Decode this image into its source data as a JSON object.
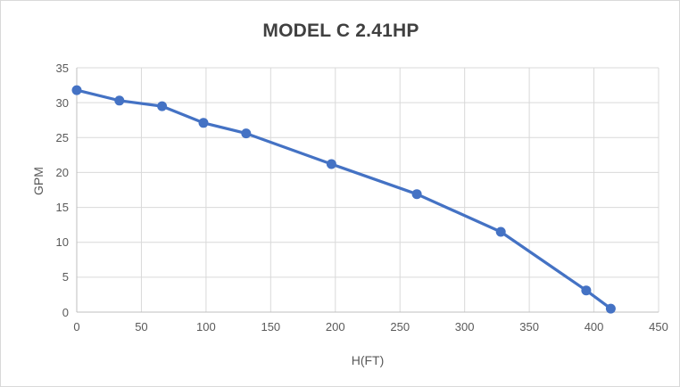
{
  "chart": {
    "title": "MODEL C 2.41HP",
    "xlabel": "H(FT)",
    "ylabel": "GPM"
  },
  "chart_data": {
    "type": "line",
    "title": "MODEL C 2.41HP",
    "xlabel": "H(FT)",
    "ylabel": "GPM",
    "x": [
      0,
      33,
      66,
      98,
      131,
      197,
      263,
      328,
      394,
      413
    ],
    "y": [
      31.8,
      30.3,
      29.5,
      27.1,
      25.6,
      21.2,
      16.9,
      11.5,
      3.1,
      0.5
    ],
    "xlim": [
      0,
      450
    ],
    "ylim": [
      0,
      35
    ],
    "x_ticks": [
      0,
      50,
      100,
      150,
      200,
      250,
      300,
      350,
      400,
      450
    ],
    "y_ticks": [
      0,
      5,
      10,
      15,
      20,
      25,
      30,
      35
    ],
    "grid": true,
    "legend": false,
    "marker": "circle"
  },
  "colors": {
    "series_line": "#4472C4",
    "marker_fill": "#4472C4",
    "title_text": "#404040",
    "axis_text": "#595959",
    "gridline": "#D9D9D9",
    "axis_line": "#BFBFBF",
    "frame_border": "#D9D9D9",
    "background": "#FFFFFF"
  }
}
